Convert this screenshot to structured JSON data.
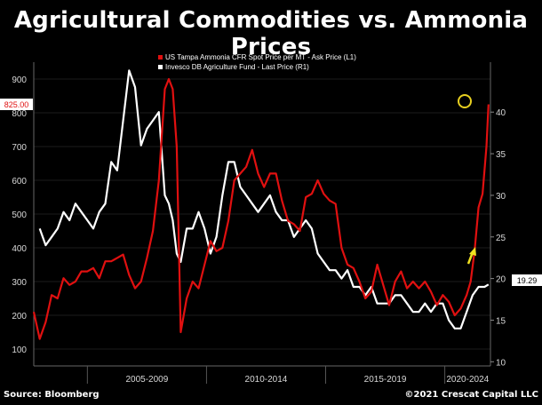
{
  "title": "Agricultural Commodities vs. Ammonia Prices",
  "source": "Source: Bloomberg",
  "copyright": "©2021 Crescat Capital LLC",
  "colors": {
    "ammonia": "#e01010",
    "dbag": "#ffffff",
    "highlight": "#e8d020",
    "arrow": "#f0e020",
    "background": "#000000"
  },
  "chart_data": {
    "type": "line",
    "title": "Agricultural Commodities vs. Ammonia Prices",
    "x_axis": {
      "type": "date",
      "range": [
        "2002-10",
        "2021-12"
      ],
      "period_labels": [
        "2005-2009",
        "2010-2014",
        "2015-2019",
        "2020-2024"
      ]
    },
    "y_left": {
      "range": [
        50,
        950
      ],
      "ticks": [
        100,
        200,
        300,
        400,
        500,
        600,
        700,
        800,
        900
      ]
    },
    "y_right": {
      "range": [
        9.5,
        46
      ],
      "ticks": [
        10,
        15,
        20,
        25,
        30,
        35,
        40
      ]
    },
    "last_value_tags": {
      "left": "825.00",
      "right": "19.29"
    },
    "legend_placement": "top",
    "series": [
      {
        "name": "US Tampa Ammonia CFR Spot Price per MT - Ask Price (L1)",
        "axis": "left",
        "x": [
          "2002-10",
          "2003-01",
          "2003-04",
          "2003-07",
          "2003-10",
          "2004-01",
          "2004-04",
          "2004-07",
          "2004-10",
          "2005-01",
          "2005-04",
          "2005-07",
          "2005-10",
          "2006-01",
          "2006-04",
          "2006-07",
          "2006-10",
          "2007-01",
          "2007-04",
          "2007-07",
          "2007-10",
          "2008-01",
          "2008-04",
          "2008-06",
          "2008-08",
          "2008-10",
          "2008-12",
          "2009-03",
          "2009-06",
          "2009-09",
          "2009-12",
          "2010-03",
          "2010-06",
          "2010-09",
          "2010-12",
          "2011-03",
          "2011-06",
          "2011-09",
          "2011-12",
          "2012-03",
          "2012-06",
          "2012-09",
          "2012-12",
          "2013-03",
          "2013-06",
          "2013-09",
          "2013-12",
          "2014-03",
          "2014-06",
          "2014-09",
          "2014-12",
          "2015-03",
          "2015-06",
          "2015-09",
          "2015-12",
          "2016-03",
          "2016-06",
          "2016-09",
          "2016-12",
          "2017-03",
          "2017-06",
          "2017-09",
          "2017-12",
          "2018-03",
          "2018-06",
          "2018-09",
          "2018-12",
          "2019-03",
          "2019-06",
          "2019-09",
          "2019-12",
          "2020-03",
          "2020-06",
          "2020-09",
          "2020-12",
          "2021-02",
          "2021-04",
          "2021-06",
          "2021-08",
          "2021-10",
          "2021-11"
        ],
        "values": [
          210,
          130,
          180,
          260,
          250,
          310,
          290,
          300,
          330,
          330,
          340,
          310,
          360,
          360,
          370,
          380,
          320,
          280,
          300,
          370,
          450,
          600,
          870,
          900,
          870,
          700,
          150,
          250,
          300,
          280,
          350,
          420,
          390,
          400,
          480,
          600,
          620,
          640,
          690,
          620,
          580,
          620,
          620,
          540,
          480,
          470,
          450,
          550,
          560,
          600,
          560,
          540,
          530,
          400,
          350,
          340,
          300,
          250,
          270,
          350,
          290,
          230,
          300,
          330,
          280,
          300,
          280,
          300,
          270,
          230,
          260,
          240,
          200,
          220,
          260,
          300,
          390,
          520,
          560,
          700,
          825
        ]
      },
      {
        "name": "Invesco DB Agriculture Fund - Last Price (R1)",
        "axis": "right",
        "x": [
          "2003-01",
          "2003-04",
          "2003-07",
          "2003-10",
          "2004-01",
          "2004-04",
          "2004-07",
          "2004-10",
          "2005-01",
          "2005-04",
          "2005-07",
          "2005-10",
          "2006-01",
          "2006-04",
          "2006-07",
          "2006-10",
          "2007-01",
          "2007-04",
          "2007-07",
          "2007-10",
          "2008-01",
          "2008-04",
          "2008-06",
          "2008-08",
          "2008-10",
          "2008-12",
          "2009-03",
          "2009-06",
          "2009-09",
          "2009-12",
          "2010-03",
          "2010-06",
          "2010-09",
          "2010-12",
          "2011-03",
          "2011-06",
          "2011-09",
          "2011-12",
          "2012-03",
          "2012-06",
          "2012-09",
          "2012-12",
          "2013-03",
          "2013-06",
          "2013-09",
          "2013-12",
          "2014-03",
          "2014-06",
          "2014-09",
          "2014-12",
          "2015-03",
          "2015-06",
          "2015-09",
          "2015-12",
          "2016-03",
          "2016-06",
          "2016-09",
          "2016-12",
          "2017-03",
          "2017-06",
          "2017-09",
          "2017-12",
          "2018-03",
          "2018-06",
          "2018-09",
          "2018-12",
          "2019-03",
          "2019-06",
          "2019-09",
          "2019-12",
          "2020-03",
          "2020-06",
          "2020-09",
          "2020-12",
          "2021-03",
          "2021-06",
          "2021-09",
          "2021-11"
        ],
        "values": [
          26,
          24,
          25,
          26,
          28,
          27,
          29,
          28,
          27,
          26,
          28,
          29,
          34,
          33,
          39,
          45,
          43,
          36,
          38,
          39,
          40,
          30,
          29,
          27,
          23,
          22,
          26,
          26,
          28,
          26,
          23,
          25,
          30,
          34,
          34,
          31,
          30,
          29,
          28,
          29,
          30,
          28,
          27,
          27,
          25,
          26,
          27,
          26,
          23,
          22,
          21,
          21,
          20,
          21,
          19,
          19,
          18,
          19,
          17,
          17,
          17,
          18,
          18,
          17,
          16,
          16,
          17,
          16,
          17,
          17,
          15,
          14,
          14,
          16,
          18,
          19,
          19,
          19.29
        ]
      }
    ]
  }
}
